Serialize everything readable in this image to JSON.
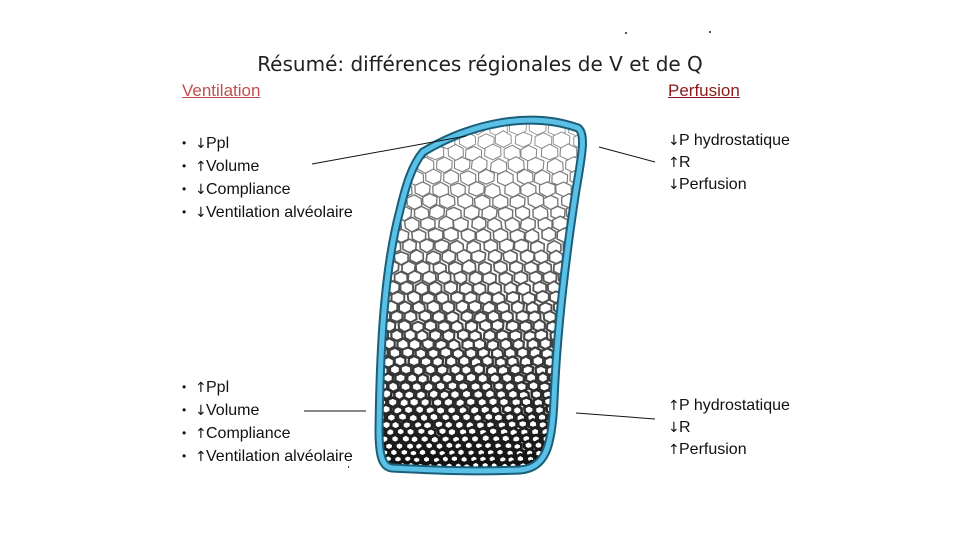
{
  "title": "Résumé: différences régionales de V et de Q",
  "ventilation": {
    "header": "Ventilation",
    "top": [
      {
        "arrow": "↓",
        "text": "Ppl"
      },
      {
        "arrow": "↑",
        "text": "Volume"
      },
      {
        "arrow": "↓",
        "text": "Compliance"
      },
      {
        "arrow": "↓",
        "text": "Ventilation alvéolaire"
      }
    ],
    "bottom": [
      {
        "arrow": "↑",
        "text": "Ppl"
      },
      {
        "arrow": "↓",
        "text": "Volume"
      },
      {
        "arrow": "↑",
        "text": "Compliance"
      },
      {
        "arrow": "↑",
        "text": "Ventilation alvéolaire"
      }
    ]
  },
  "perfusion": {
    "header": "Perfusion",
    "top": [
      {
        "arrow": "↓",
        "text": "P hydrostatique"
      },
      {
        "arrow": "↑",
        "text": "R"
      },
      {
        "arrow": "↓",
        "text": "Perfusion"
      }
    ],
    "bottom": [
      {
        "arrow": "↑",
        "text": "P hydrostatique"
      },
      {
        "arrow": "↓",
        "text": "R"
      },
      {
        "arrow": "↑",
        "text": "Perfusion"
      }
    ]
  },
  "colors": {
    "ventilation_header": "#c0504d",
    "perfusion_header": "#8b1a1a",
    "pleura": "#5bc0e6"
  },
  "bullet": "•"
}
